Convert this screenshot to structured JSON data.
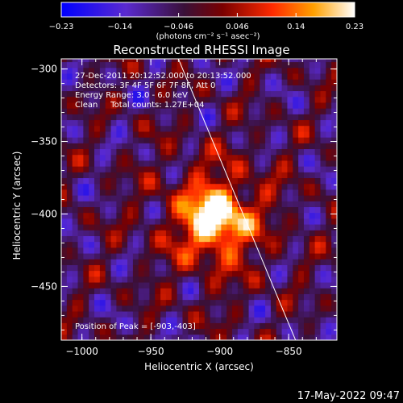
{
  "chart_data": {
    "type": "heatmap",
    "title": "Reconstructed RHESSI Image",
    "xlabel": "Heliocentric X (arcsec)",
    "ylabel": "Heliocentric Y (arcsec)",
    "xlim": [
      -1015,
      -815
    ],
    "ylim": [
      -487,
      -293
    ],
    "x_ticks": [
      {
        "value": -1000,
        "label": "−1000"
      },
      {
        "value": -950,
        "label": "−950"
      },
      {
        "value": -900,
        "label": "−900"
      },
      {
        "value": -850,
        "label": "−850"
      }
    ],
    "y_ticks": [
      {
        "value": -300,
        "label": "−300"
      },
      {
        "value": -350,
        "label": "−350"
      },
      {
        "value": -400,
        "label": "−400"
      },
      {
        "value": -450,
        "label": "−450"
      }
    ],
    "colorbar": {
      "range": [
        -0.23,
        0.23
      ],
      "ticks": [
        {
          "value": -0.23,
          "label": "−0.23"
        },
        {
          "value": -0.138,
          "label": "−0.14"
        },
        {
          "value": -0.046,
          "label": "−0.046"
        },
        {
          "value": 0.046,
          "label": "0.046"
        },
        {
          "value": 0.138,
          "label": "0.14"
        },
        {
          "value": 0.23,
          "label": "0.23"
        }
      ],
      "unit_label": "(photons cm⁻² s⁻¹ asec⁻²)"
    },
    "annotations": [
      "27-Dec-2011 20:12:52.000 to 20:13:52.000",
      "Detectors: 3F 4F 5F 6F 7F 8F, Att 0",
      "Energy Range: 3.0 - 6.0 keV",
      "Clean     Total counts: 1.27E+04"
    ],
    "peak_label": "Position of Peak = [-903,-403]",
    "peak": {
      "x": -903,
      "y": -403,
      "value": 0.23
    },
    "limb_line": [
      [
        -930,
        -293
      ],
      [
        -845,
        -487
      ]
    ],
    "timestamp": "17-May-2022 09:47"
  }
}
